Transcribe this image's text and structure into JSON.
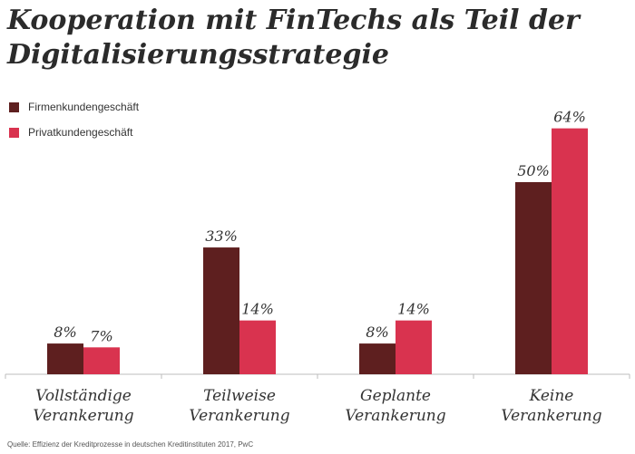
{
  "chart_data": {
    "type": "bar",
    "title": "Kooperation mit FinTechs als Teil der Digitalisierungsstrategie",
    "categories": [
      [
        "Vollständige",
        "Verankerung"
      ],
      [
        "Teilweise",
        "Verankerung"
      ],
      [
        "Geplante",
        "Verankerung"
      ],
      [
        "Keine",
        "Verankerung"
      ]
    ],
    "series": [
      {
        "name": "Firmenkundengeschäft",
        "values": [
          8,
          33,
          8,
          50
        ],
        "labels": [
          "8%",
          "33%",
          "8%",
          "50%"
        ],
        "color": "#5e1f1f"
      },
      {
        "name": "Privatkundengeschäft",
        "values": [
          7,
          14,
          14,
          64
        ],
        "labels": [
          "7%",
          "14%",
          "14%",
          "64%"
        ],
        "color": "#d9334f"
      }
    ],
    "ylim": [
      0,
      70
    ],
    "grid": false,
    "legend_position": "top-left"
  },
  "source": "Quelle: Effizienz der Kreditprozesse in deutschen Kreditinstituten 2017, PwC"
}
